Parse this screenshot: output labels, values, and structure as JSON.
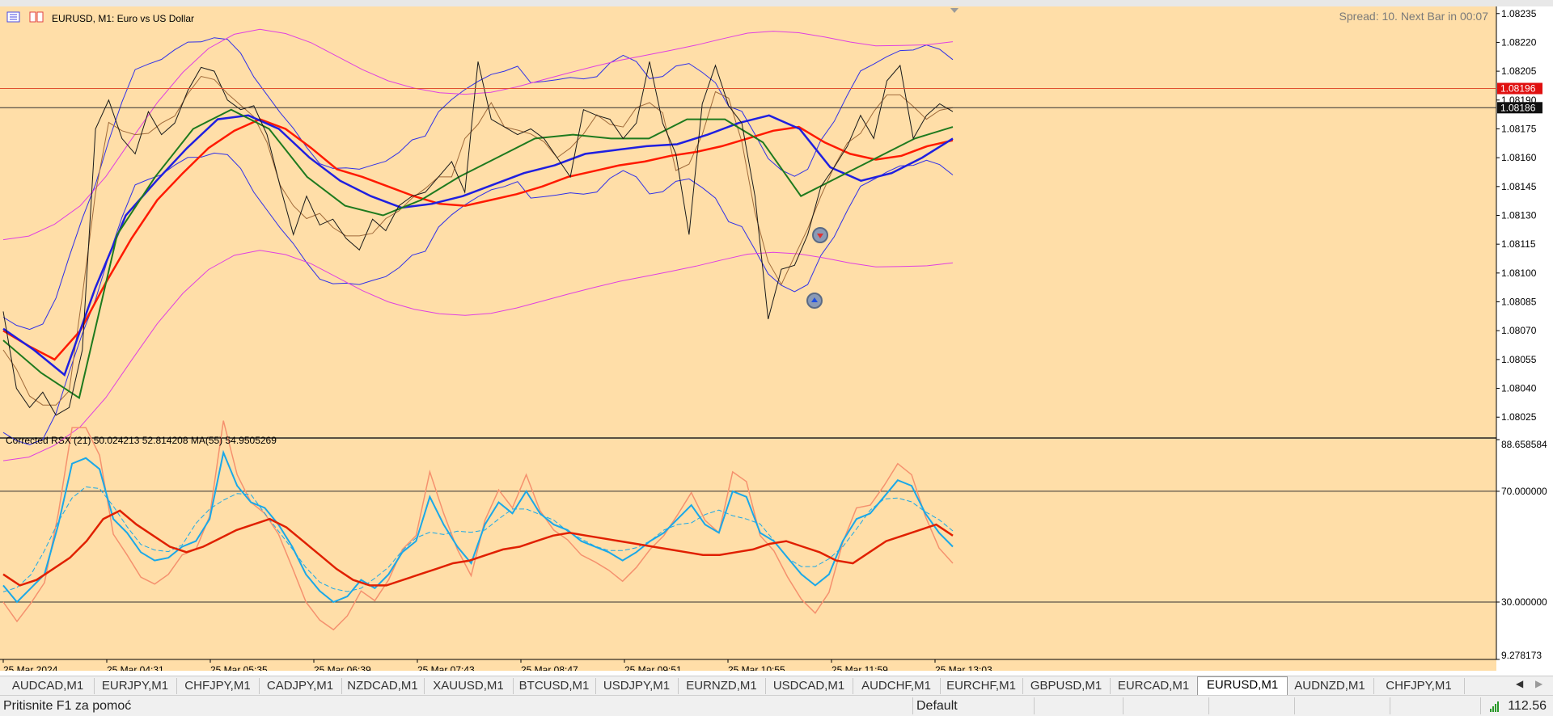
{
  "window": {
    "symbol_title": "EURUSD, M1:  Euro vs US Dollar"
  },
  "spread_label": "Spread: 10. Next Bar in 00:07",
  "indicator_label": "Corrected RSX (21) 50.024213 52.814208 MA(55) 54.9505269",
  "colors": {
    "background": "#ffdea8",
    "price": "#1a1a1a",
    "ma_red": "#ff1a00",
    "ma_blue": "#1f1fe0",
    "ma_green": "#1e7a1e",
    "bands_blue": "#3030e8",
    "bands_magenta": "#e040e0",
    "rsx": "#1aa8e8",
    "rsx_signal": "#e8207a",
    "rsx_ma": "#e02000",
    "rsx_slow": "#f5916e"
  },
  "chart_data": [
    {
      "type": "line",
      "title": "EURUSD, M1:  Euro vs US Dollar",
      "x_ticks": [
        "25 Mar 2024",
        "25 Mar 04:31",
        "25 Mar 05:35",
        "25 Mar 06:39",
        "25 Mar 07:43",
        "25 Mar 08:47",
        "25 Mar 09:51",
        "25 Mar 10:55",
        "25 Mar 11:59",
        "25 Mar 13:03"
      ],
      "y_ticks": [
        "1.08235",
        "1.08220",
        "1.08205",
        "1.08190",
        "1.08175",
        "1.08160",
        "1.08145",
        "1.08130",
        "1.08115",
        "1.08100",
        "1.08085",
        "1.08070",
        "1.08055",
        "1.08040",
        "1.08025"
      ],
      "ylim": [
        1.08015,
        1.08237
      ],
      "price_labels": {
        "ask": "1.08196",
        "bid": "1.08186"
      },
      "series": [
        {
          "values": [
            1.0808,
            1.0804,
            1.0803,
            1.08038,
            1.08026,
            1.0803,
            1.0806,
            1.08175,
            1.0819,
            1.0817,
            1.08162,
            1.08184,
            1.08172,
            1.08178,
            1.08195,
            1.08207,
            1.08205,
            1.0819,
            1.08185,
            1.08187,
            1.08172,
            1.08145,
            1.0812,
            1.0814,
            1.08125,
            1.08128,
            1.08118,
            1.08112,
            1.08128,
            1.08122,
            1.08135,
            1.0814,
            1.08142,
            1.0815,
            1.08158,
            1.08142,
            1.0821,
            1.0818,
            1.08176,
            1.08172,
            1.08175,
            1.0817,
            1.0816,
            1.0815,
            1.08185,
            1.08182,
            1.0818,
            1.0817,
            1.08178,
            1.0821,
            1.08178,
            1.08162,
            1.0812,
            1.08188,
            1.08208,
            1.08187,
            1.08178,
            1.0814,
            1.08076,
            1.08102,
            1.08104,
            1.0812,
            1.08145,
            1.08155,
            1.08166,
            1.08182,
            1.0817,
            1.082,
            1.08208,
            1.0817,
            1.08182,
            1.08188,
            1.08184
          ]
        },
        {
          "values": [
            1.0807,
            1.08062,
            1.08055,
            1.0807,
            1.08095,
            1.08118,
            1.08138,
            1.08152,
            1.08165,
            1.08174,
            1.0818,
            1.08175,
            1.08165,
            1.08154,
            1.0815,
            1.08145,
            1.0814,
            1.08136,
            1.08135,
            1.08138,
            1.08141,
            1.08145,
            1.0815,
            1.08153,
            1.08156,
            1.08158,
            1.08161,
            1.08163,
            1.08166,
            1.0817,
            1.08174,
            1.08176,
            1.08168,
            1.08162,
            1.08159,
            1.08161,
            1.08166,
            1.08169
          ]
        },
        {
          "values": [
            1.08071,
            1.0806,
            1.08047,
            1.08092,
            1.0813,
            1.08148,
            1.08165,
            1.0818,
            1.08182,
            1.08175,
            1.0816,
            1.08148,
            1.0814,
            1.08134,
            1.08136,
            1.0814,
            1.08146,
            1.08152,
            1.08156,
            1.08162,
            1.08164,
            1.08166,
            1.08167,
            1.08172,
            1.08178,
            1.08182,
            1.08175,
            1.08155,
            1.08148,
            1.08152,
            1.0816,
            1.0817
          ]
        },
        {
          "values": [
            1.08065,
            1.08048,
            1.08035,
            1.0812,
            1.0815,
            1.08175,
            1.08185,
            1.08175,
            1.0815,
            1.08135,
            1.0813,
            1.08138,
            1.0815,
            1.0816,
            1.0817,
            1.08172,
            1.0817,
            1.0817,
            1.0818,
            1.0818,
            1.08168,
            1.0814,
            1.0815,
            1.0816,
            1.0817,
            1.08176
          ]
        }
      ]
    },
    {
      "type": "line",
      "title": "Corrected RSX (21) 50.024213 52.814208 MA(55) 54.9505269",
      "y_ticks": [
        "88.658584",
        "70.000000",
        "30.000000",
        "9.278173"
      ],
      "ylim": [
        9.278173,
        88.658584
      ],
      "levels": [
        70,
        30
      ],
      "series": [
        {
          "values": [
            36,
            30,
            35,
            40,
            58,
            80,
            82,
            78,
            60,
            55,
            48,
            45,
            46,
            50,
            52,
            60,
            84,
            72,
            66,
            64,
            58,
            50,
            40,
            34,
            30,
            32,
            38,
            35,
            40,
            48,
            52,
            68,
            58,
            50,
            44,
            58,
            66,
            62,
            70,
            62,
            58,
            56,
            52,
            50,
            48,
            45,
            48,
            52,
            55,
            60,
            65,
            58,
            55,
            70,
            68,
            55,
            52,
            46,
            40,
            36,
            40,
            52,
            60,
            62,
            68,
            74,
            72,
            62,
            55,
            50
          ]
        },
        {
          "values": [
            40,
            36,
            38,
            42,
            46,
            52,
            60,
            63,
            58,
            54,
            50,
            48,
            50,
            53,
            56,
            58,
            60,
            57,
            52,
            47,
            42,
            38,
            36,
            36,
            38,
            40,
            42,
            44,
            45,
            47,
            49,
            50,
            52,
            54,
            55,
            54,
            53,
            52,
            51,
            50,
            49,
            48,
            47,
            47,
            48,
            49,
            51,
            52,
            50,
            48,
            45,
            44,
            48,
            52,
            54,
            56,
            58,
            54
          ]
        }
      ]
    }
  ],
  "tabs": [
    "AUDCAD,M1",
    "EURJPY,M1",
    "CHFJPY,M1",
    "CADJPY,M1",
    "NZDCAD,M1",
    "XAUUSD,M1",
    "BTCUSD,M1",
    "USDJPY,M1",
    "EURNZD,M1",
    "USDCAD,M1",
    "AUDCHF,M1",
    "EURCHF,M1",
    "GBPUSD,M1",
    "EURCAD,M1",
    "EURUSD,M1",
    "AUDNZD,M1",
    "CHFJPY,M1"
  ],
  "active_tab": "EURUSD,M1",
  "status": {
    "help": "Pritisnite F1 za pomoć",
    "profile": "Default",
    "ping": "112.56"
  }
}
